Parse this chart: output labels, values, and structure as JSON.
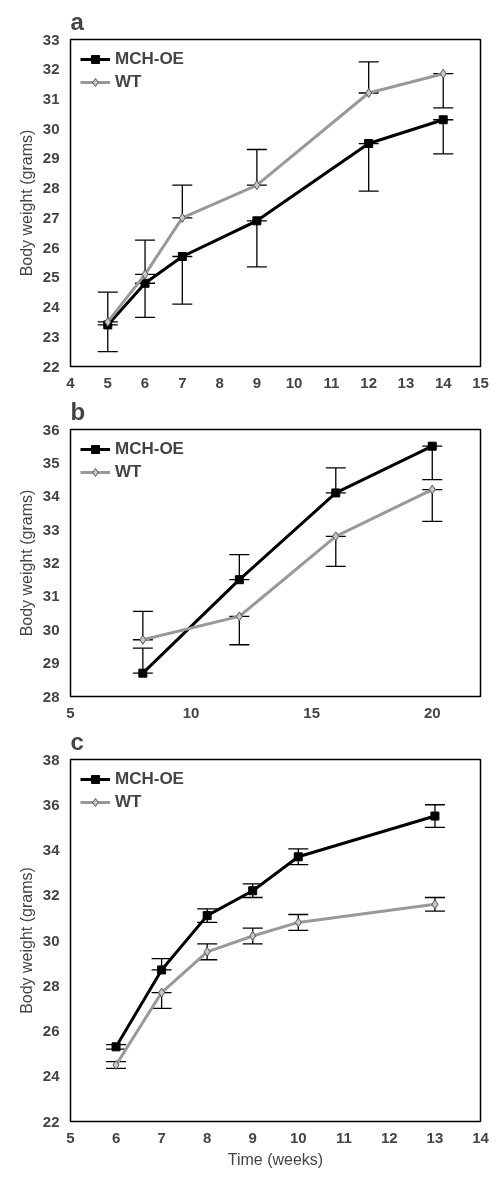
{
  "chart_data": [
    {
      "type": "line",
      "title": "a",
      "ylabel": "Body weight (grams)",
      "x": [
        5,
        6,
        7,
        9,
        12,
        14
      ],
      "xlim": [
        4,
        15
      ],
      "xticks": [
        4,
        5,
        6,
        7,
        8,
        9,
        10,
        11,
        12,
        13,
        14,
        15
      ],
      "ylim": [
        22,
        33
      ],
      "yticks": [
        22,
        23,
        24,
        25,
        26,
        27,
        28,
        29,
        30,
        31,
        32,
        33
      ],
      "legend": "top left",
      "grid": false,
      "series": [
        {
          "name": "MCH-OE",
          "color": "#000000",
          "marker": "square",
          "values": [
            23.4,
            24.8,
            25.7,
            26.9,
            29.5,
            30.3
          ],
          "errors": [
            [
              22.5,
              23.4
            ],
            [
              23.65,
              24.8
            ],
            [
              24.1,
              25.7
            ],
            [
              25.35,
              26.9
            ],
            [
              27.9,
              29.5
            ],
            [
              29.15,
              30.3
            ]
          ]
        },
        {
          "name": "WT",
          "color": "#999999",
          "marker": "diamond",
          "values": [
            23.5,
            25.1,
            27.0,
            28.1,
            31.2,
            31.85
          ],
          "errors": [
            [
              23.5,
              24.5
            ],
            [
              25.1,
              26.25
            ],
            [
              27.0,
              28.1
            ],
            [
              28.1,
              29.3
            ],
            [
              31.2,
              32.25
            ],
            [
              30.7,
              31.85
            ]
          ]
        }
      ]
    },
    {
      "type": "line",
      "title": "b",
      "ylabel": "Body weight (grams)",
      "x": [
        8,
        12,
        16,
        20
      ],
      "xlim": [
        5,
        22
      ],
      "xticks": [
        5,
        10,
        15,
        20
      ],
      "ylim": [
        28,
        36
      ],
      "yticks": [
        28,
        29,
        30,
        31,
        32,
        33,
        34,
        35,
        36
      ],
      "legend": "top left",
      "grid": false,
      "series": [
        {
          "name": "MCH-OE",
          "color": "#000000",
          "marker": "square",
          "values": [
            28.7,
            31.5,
            34.1,
            35.5
          ],
          "errors": [
            [
              28.7,
              29.45
            ],
            [
              31.5,
              32.25
            ],
            [
              34.1,
              34.85
            ],
            [
              34.5,
              35.5
            ]
          ]
        },
        {
          "name": "WT",
          "color": "#999999",
          "marker": "diamond",
          "values": [
            29.7,
            30.4,
            32.8,
            34.2
          ],
          "errors": [
            [
              29.7,
              30.55
            ],
            [
              29.55,
              30.4
            ],
            [
              31.9,
              32.8
            ],
            [
              33.25,
              34.2
            ]
          ]
        }
      ]
    },
    {
      "type": "line",
      "title": "c",
      "xlabel": "Time (weeks)",
      "ylabel": "Body weight (grams)",
      "x": [
        6,
        7,
        8,
        9,
        10,
        13
      ],
      "xlim": [
        5,
        14
      ],
      "xticks": [
        5,
        6,
        7,
        8,
        9,
        10,
        11,
        12,
        13,
        14
      ],
      "ylim": [
        22,
        38
      ],
      "yticks": [
        22,
        24,
        26,
        28,
        30,
        32,
        34,
        36,
        38
      ],
      "legend": "top left",
      "grid": false,
      "series": [
        {
          "name": "MCH-OE",
          "color": "#000000",
          "marker": "square",
          "values": [
            25.3,
            28.7,
            31.1,
            32.2,
            33.7,
            35.5
          ],
          "errors": [
            0.1,
            [
              28.7,
              29.2
            ],
            0.3,
            0.3,
            0.35,
            0.5
          ]
        },
        {
          "name": "WT",
          "color": "#999999",
          "marker": "diamond",
          "values": [
            24.5,
            27.7,
            29.5,
            30.2,
            30.8,
            31.6
          ],
          "errors": [
            0.15,
            [
              27.0,
              27.7
            ],
            0.35,
            0.35,
            0.35,
            0.3
          ]
        }
      ]
    }
  ]
}
